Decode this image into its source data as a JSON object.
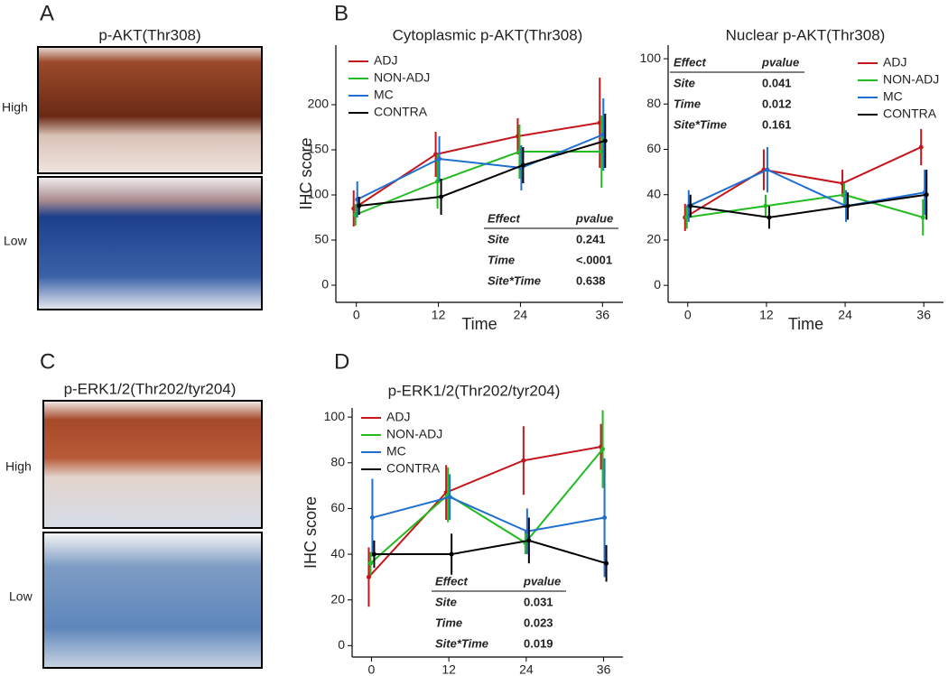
{
  "panel_letters": [
    "A",
    "B",
    "C",
    "D"
  ],
  "image_panels": [
    {
      "title": "p-AKT(Thr308)",
      "labels": [
        "High",
        "Low"
      ]
    },
    {
      "title": "p-ERK1/2(Thr202/tyr204)",
      "labels": [
        "High",
        "Low"
      ]
    }
  ],
  "chart_data": [
    {
      "type": "line",
      "title": "Cytoplasmic p-AKT(Thr308)",
      "xlabel": "Time",
      "ylabel": "IHC score",
      "x": [
        0,
        12,
        24,
        36
      ],
      "xlim": [
        -3,
        39
      ],
      "xticks": [
        0,
        12,
        24,
        36
      ],
      "ylim": [
        -19,
        266
      ],
      "yticks": [
        0,
        50,
        100,
        150,
        200
      ],
      "series": [
        {
          "name": "ADJ",
          "color": "#c4161c",
          "values": [
            85,
            145,
            165,
            180
          ],
          "errors": [
            20,
            25,
            20,
            50
          ]
        },
        {
          "name": "NON-ADJ",
          "color": "#22bb22",
          "values": [
            78,
            115,
            148,
            148
          ],
          "errors": [
            12,
            30,
            30,
            40
          ]
        },
        {
          "name": "MC",
          "color": "#1f6fd0",
          "values": [
            95,
            140,
            130,
            167
          ],
          "errors": [
            20,
            25,
            25,
            40
          ]
        },
        {
          "name": "CONTRA",
          "color": "#000000",
          "values": [
            88,
            98,
            133,
            160
          ],
          "errors": [
            10,
            20,
            20,
            30
          ]
        }
      ],
      "stats": {
        "header": [
          "Effect",
          "pvalue"
        ],
        "rows": [
          [
            "Site",
            "0.241"
          ],
          [
            "Time",
            "<.0001"
          ],
          [
            "Site*Time",
            "0.638"
          ]
        ]
      }
    },
    {
      "type": "line",
      "title": "Nuclear p-AKT(Thr308)",
      "xlabel": "Time",
      "x": [
        0,
        12,
        24,
        36
      ],
      "xlim": [
        -3,
        39
      ],
      "xticks": [
        0,
        12,
        24,
        36
      ],
      "ylim": [
        -7.5,
        106
      ],
      "yticks": [
        0,
        20,
        40,
        60,
        80,
        100
      ],
      "series": [
        {
          "name": "ADJ",
          "color": "#c4161c",
          "values": [
            30,
            51,
            45,
            61
          ],
          "errors": [
            6,
            9,
            6,
            8
          ]
        },
        {
          "name": "NON-ADJ",
          "color": "#22bb22",
          "values": [
            30,
            35,
            40,
            30
          ],
          "errors": [
            5,
            5,
            5,
            8
          ]
        },
        {
          "name": "MC",
          "color": "#1f6fd0",
          "values": [
            35,
            51,
            35,
            41
          ],
          "errors": [
            7,
            10,
            7,
            10
          ]
        },
        {
          "name": "CONTRA",
          "color": "#000000",
          "values": [
            35,
            30,
            35,
            40
          ],
          "errors": [
            5,
            5,
            6,
            11
          ]
        }
      ],
      "stats": {
        "header": [
          "Effect",
          "pvalue"
        ],
        "rows": [
          [
            "Site",
            "0.041"
          ],
          [
            "Time",
            "0.012"
          ],
          [
            "Site*Time",
            "0.161"
          ]
        ]
      }
    },
    {
      "type": "line",
      "title": "p-ERK1/2(Thr202/tyr204)",
      "ylabel": "IHC score",
      "x": [
        0,
        12,
        24,
        36
      ],
      "xlim": [
        -3,
        39
      ],
      "xticks": [
        0,
        12,
        24,
        36
      ],
      "ylim": [
        -5,
        104
      ],
      "yticks": [
        0,
        20,
        40,
        60,
        80,
        100
      ],
      "series": [
        {
          "name": "ADJ",
          "color": "#c4161c",
          "values": [
            30,
            67,
            81,
            87
          ],
          "errors": [
            13,
            12,
            15,
            10
          ]
        },
        {
          "name": "NON-ADJ",
          "color": "#22bb22",
          "values": [
            36,
            66,
            45,
            86
          ],
          "errors": [
            5,
            12,
            5,
            17
          ]
        },
        {
          "name": "MC",
          "color": "#1f6fd0",
          "values": [
            56,
            65,
            50,
            56
          ],
          "errors": [
            17,
            10,
            10,
            26
          ]
        },
        {
          "name": "CONTRA",
          "color": "#000000",
          "values": [
            40,
            40,
            46,
            36
          ],
          "errors": [
            6,
            9,
            10,
            8
          ]
        }
      ],
      "stats": {
        "header": [
          "Effect",
          "pvalue"
        ],
        "rows": [
          [
            "Site",
            "0.031"
          ],
          [
            "Time",
            "0.023"
          ],
          [
            "Site*Time",
            "0.019"
          ]
        ]
      }
    }
  ]
}
